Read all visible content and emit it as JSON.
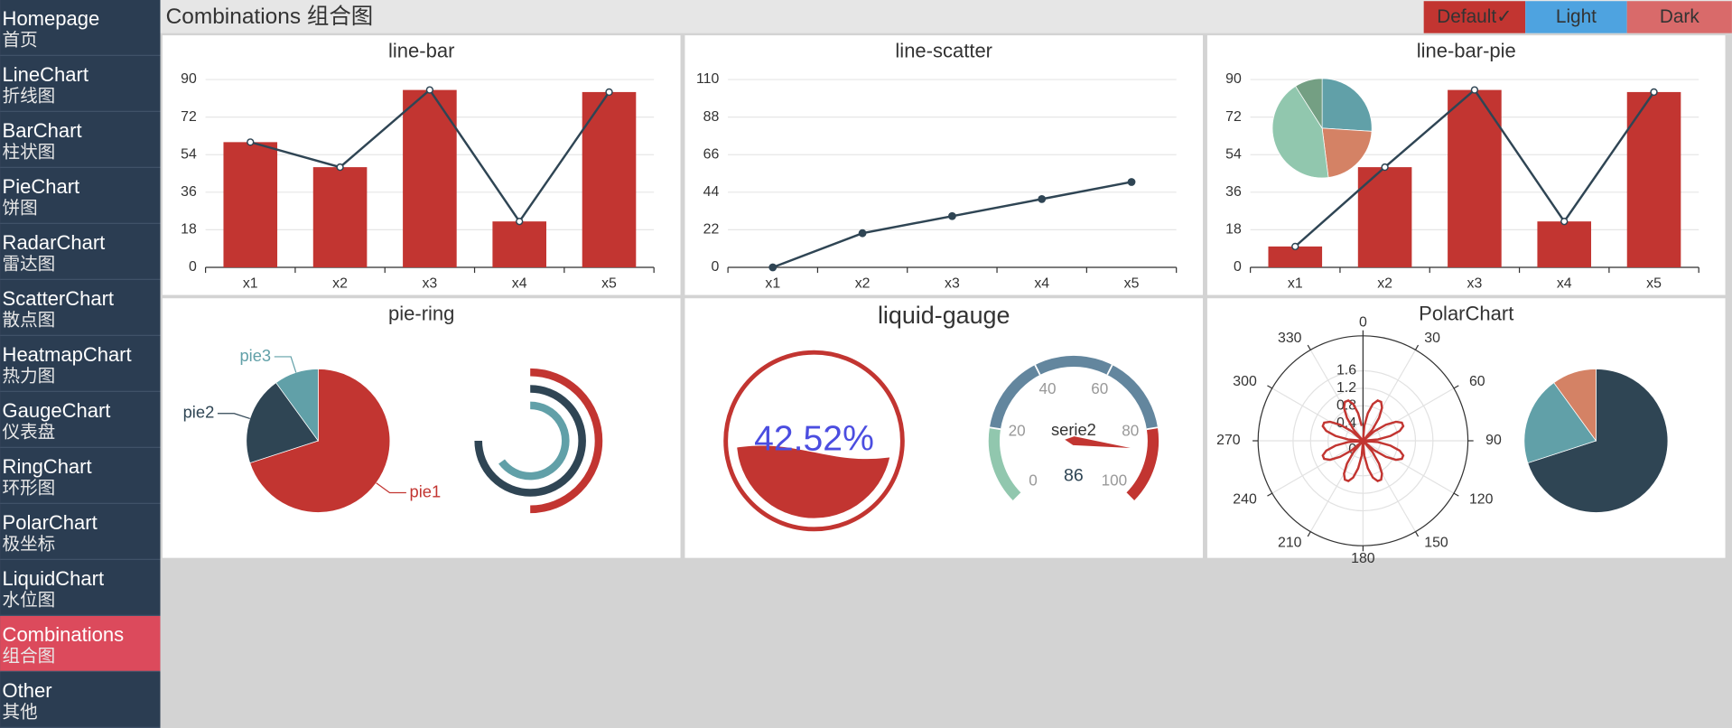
{
  "header": {
    "title": "Combinations 组合图"
  },
  "themes": [
    {
      "label": "Default✓",
      "color": "#c23531"
    },
    {
      "label": "Light",
      "color": "#4ea3e0"
    },
    {
      "label": "Dark",
      "color": "#d96a6a"
    }
  ],
  "sidebar": [
    {
      "label": "Homepage",
      "sub": "首页"
    },
    {
      "label": "LineChart",
      "sub": "折线图"
    },
    {
      "label": "BarChart",
      "sub": "柱状图"
    },
    {
      "label": "PieChart",
      "sub": "饼图"
    },
    {
      "label": "RadarChart",
      "sub": "雷达图"
    },
    {
      "label": "ScatterChart",
      "sub": "散点图"
    },
    {
      "label": "HeatmapChart",
      "sub": "热力图"
    },
    {
      "label": "GaugeChart",
      "sub": "仪表盘"
    },
    {
      "label": "RingChart",
      "sub": "环形图"
    },
    {
      "label": "PolarChart",
      "sub": "极坐标"
    },
    {
      "label": "LiquidChart",
      "sub": "水位图"
    },
    {
      "label": "Combinations",
      "sub": "组合图",
      "active": true
    },
    {
      "label": "Other",
      "sub": "其他"
    }
  ],
  "chart_data": [
    {
      "type": "bar",
      "title": "line-bar",
      "categories": [
        "x1",
        "x2",
        "x3",
        "x4",
        "x5"
      ],
      "ylim": [
        0,
        90
      ],
      "yticks": [
        0,
        18,
        36,
        54,
        72,
        90
      ],
      "grid": true,
      "series": [
        {
          "type": "bar",
          "color": "#c23531",
          "values": [
            60,
            48,
            85,
            22,
            84
          ]
        },
        {
          "type": "line",
          "color": "#2f4554",
          "symbol": "emptyCircle",
          "values": [
            60,
            48,
            85,
            22,
            84
          ]
        }
      ]
    },
    {
      "type": "line",
      "title": "line-scatter",
      "categories": [
        "x1",
        "x2",
        "x3",
        "x4",
        "x5"
      ],
      "ylim": [
        0,
        110
      ],
      "yticks": [
        0,
        22,
        44,
        66,
        88,
        110
      ],
      "grid": true,
      "series": [
        {
          "type": "line",
          "color": "#2f4554",
          "symbol": "circle",
          "values": [
            0,
            20,
            30,
            40,
            50
          ]
        }
      ]
    },
    {
      "type": "bar",
      "title": "line-bar-pie",
      "categories": [
        "x1",
        "x2",
        "x3",
        "x4",
        "x5"
      ],
      "ylim": [
        0,
        90
      ],
      "yticks": [
        0,
        18,
        36,
        54,
        72,
        90
      ],
      "grid": true,
      "series": [
        {
          "type": "bar",
          "color": "#c23531",
          "values": [
            10,
            48,
            85,
            22,
            84
          ]
        },
        {
          "type": "line",
          "color": "#2f4554",
          "symbol": "emptyCircle",
          "values": [
            10,
            48,
            85,
            22,
            84
          ]
        }
      ],
      "pie": {
        "values": [
          26,
          22,
          43,
          9
        ],
        "colors": [
          "#61a0a8",
          "#d48265",
          "#91c7ae",
          "#749f83"
        ]
      }
    },
    {
      "type": "pie",
      "title": "pie-ring",
      "categories": [
        "pie1",
        "pie2",
        "pie3"
      ],
      "values": [
        70,
        20,
        10
      ],
      "colors": [
        "#c23531",
        "#2f4554",
        "#61a0a8"
      ],
      "ring": {
        "lim": [
          0,
          100
        ],
        "values": [
          50,
          75,
          65
        ],
        "colors": [
          "#c23531",
          "#2f4554",
          "#61a0a8"
        ]
      }
    },
    {
      "type": "gauge",
      "title": "liquid-gauge",
      "liquid": {
        "value": 42.52,
        "value_label": "42.52%",
        "color": "#c23531",
        "text_color": "#4b4de0"
      },
      "gauge": {
        "name": "serie2",
        "value": 86,
        "lim": [
          0,
          100
        ],
        "ticks": [
          0,
          20,
          40,
          60,
          80,
          100
        ],
        "bands": [
          {
            "to": 20,
            "color": "#91c7ae"
          },
          {
            "to": 80,
            "color": "#63869e"
          },
          {
            "to": 100,
            "color": "#c23531"
          }
        ],
        "pointer_color": "#c23531"
      }
    },
    {
      "type": "polar",
      "title": "PolarChart",
      "color": "#c23531",
      "rlim": [
        0,
        2.4
      ],
      "rticks": [
        0,
        0.4,
        0.8,
        1.2,
        1.6
      ],
      "thetaticks": [
        0,
        30,
        60,
        90,
        120,
        150,
        180,
        210,
        240,
        270,
        300,
        330
      ],
      "theta": [
        0,
        5,
        10,
        15,
        20,
        25,
        30,
        35,
        40,
        45,
        50,
        55,
        60,
        65,
        70,
        75,
        80,
        85,
        90,
        95,
        100,
        105,
        110,
        115,
        120,
        125,
        130,
        135,
        140,
        145,
        150,
        155,
        160,
        165,
        170,
        175,
        180,
        185,
        190,
        195,
        200,
        205,
        210,
        215,
        220,
        225,
        230,
        235,
        240,
        245,
        250,
        255,
        260,
        265,
        270,
        275,
        280,
        285,
        290,
        295,
        300,
        305,
        310,
        315,
        320,
        325,
        330,
        335,
        340,
        345,
        350,
        355
      ],
      "r": [
        0,
        0.34,
        0.64,
        0.87,
        0.98,
        0.98,
        0.87,
        0.64,
        0.34,
        0,
        0.34,
        0.64,
        0.87,
        0.98,
        0.98,
        0.87,
        0.64,
        0.34,
        0,
        0.34,
        0.64,
        0.87,
        0.98,
        0.98,
        0.87,
        0.64,
        0.34,
        0,
        0.34,
        0.64,
        0.87,
        0.98,
        0.98,
        0.87,
        0.64,
        0.34,
        0,
        0.34,
        0.64,
        0.87,
        0.98,
        0.98,
        0.87,
        0.64,
        0.34,
        0,
        0.34,
        0.64,
        0.87,
        0.98,
        0.98,
        0.87,
        0.64,
        0.34,
        0,
        0.34,
        0.64,
        0.87,
        0.98,
        0.98,
        0.87,
        0.64,
        0.34,
        0,
        0.34,
        0.64,
        0.87,
        0.98,
        0.98,
        0.87,
        0.64,
        0.34
      ],
      "pie": {
        "values": [
          70,
          20,
          10
        ],
        "colors": [
          "#2f4554",
          "#61a0a8",
          "#d48265"
        ]
      }
    }
  ]
}
